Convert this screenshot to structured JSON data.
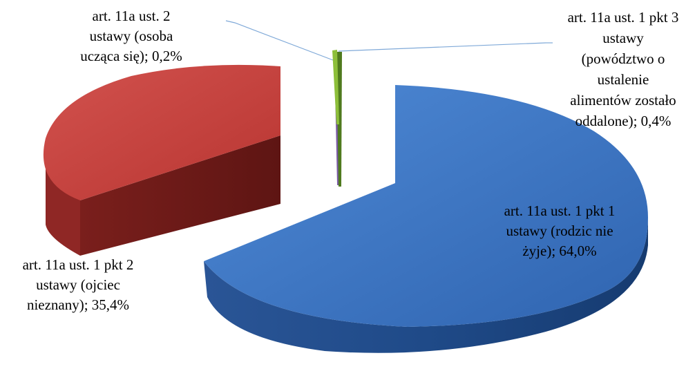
{
  "chart_data": {
    "type": "pie",
    "style": "3d-exploded",
    "title": "",
    "slices": [
      {
        "label_lines": [
          "art. 11a ust. 1 pkt 1",
          "ustawy (rodzic nie",
          "żyje); 64,0%"
        ],
        "value": 64.0,
        "color": "#3d78c8"
      },
      {
        "label_lines": [
          "art. 11a ust. 1 pkt 2",
          "ustawy (ojciec",
          "nieznany); 35,4%"
        ],
        "value": 35.4,
        "color": "#c83d3a"
      },
      {
        "label_lines": [
          "art. 11a ust. 2",
          "ustawy (osoba",
          "ucząca się); 0,2%"
        ],
        "value": 0.2,
        "color": "#7b5aa6"
      },
      {
        "label_lines": [
          "art. 11a ust. 1 pkt 3",
          "ustawy",
          "(powództwo o",
          "ustalenie",
          "alimentów zostało",
          "oddalone); 0,4%"
        ],
        "value": 0.4,
        "color": "#8dbf3a"
      }
    ],
    "legend": "none"
  }
}
